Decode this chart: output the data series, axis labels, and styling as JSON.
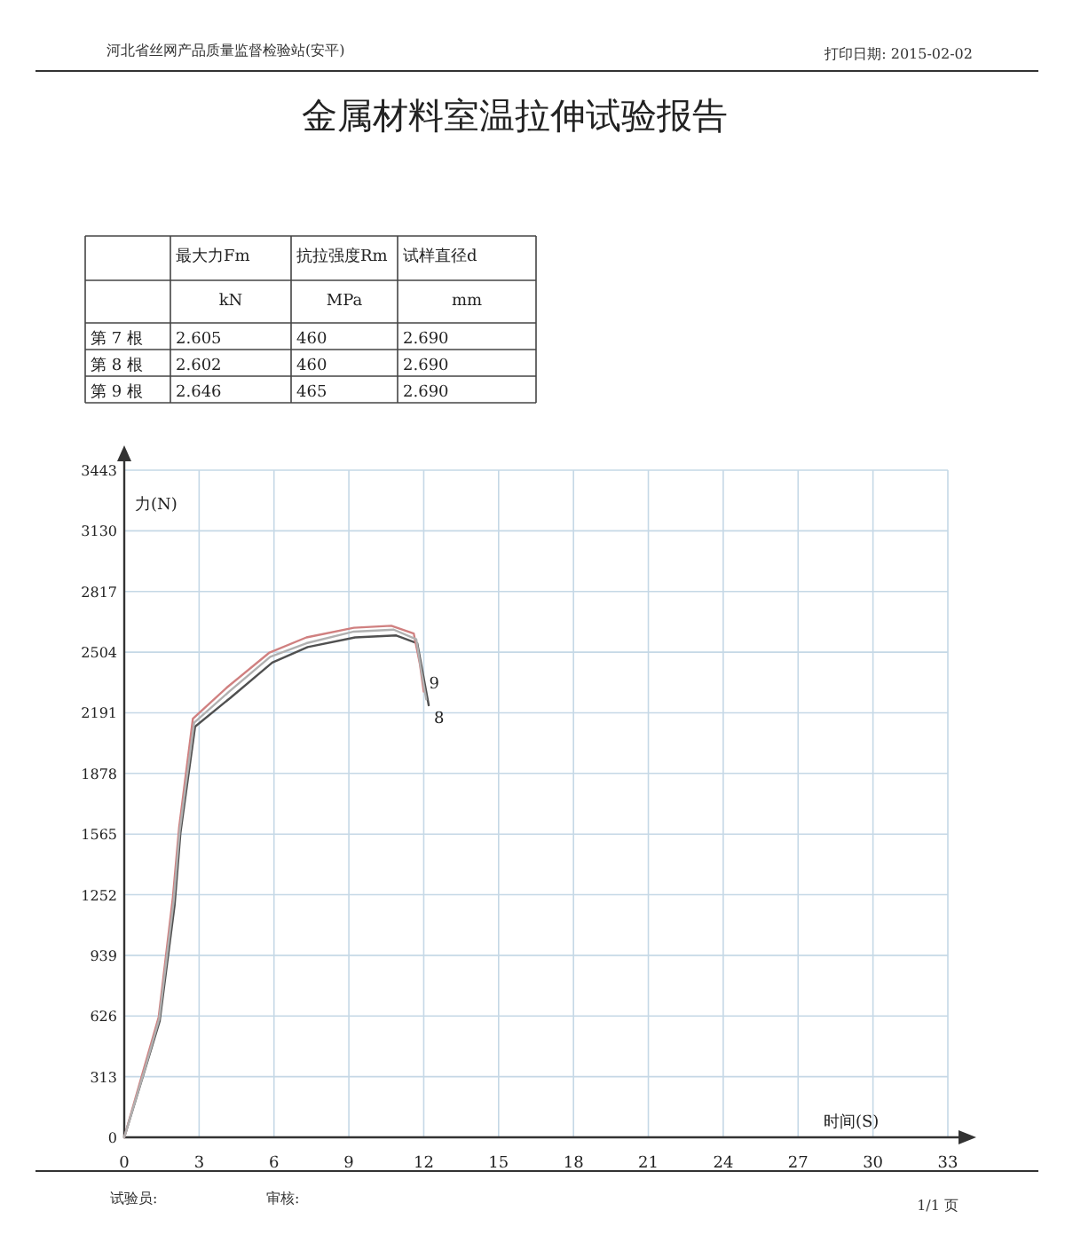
{
  "chart_data": [
    {
      "type": "other",
      "title": "金属材料室温拉伸试验报告",
      "annotations": [
        "河北省丝网产品质量监督检验站(安平)",
        "打印日期: 2015-02-02",
        "试验员:",
        "审核:",
        "1/1 页"
      ],
      "cell_labels": [
        [
          null,
          "最大力Fm",
          "抗拉强度Rm",
          "试样直径d"
        ],
        [
          null,
          "kN",
          "MPa",
          "mm"
        ],
        [
          "第 7 根",
          "2.605",
          "460",
          "2.690"
        ],
        [
          "第 8 根",
          "2.602",
          "460",
          "2.690"
        ],
        [
          "第 9 根",
          "2.646",
          "465",
          "2.690"
        ]
      ]
    },
    {
      "type": "line",
      "ylabel": "力(N)",
      "xlabel": "时间(S)",
      "xlim": [
        0,
        33
      ],
      "xticks": [
        0,
        3,
        6,
        9,
        12,
        15,
        18,
        21,
        24,
        27,
        30,
        33
      ],
      "ylim": [
        0,
        3443
      ],
      "yticks": [
        0,
        313,
        626,
        939,
        1252,
        1565,
        1878,
        2191,
        2504,
        2817,
        3130,
        3443
      ],
      "grid": true,
      "legend": false,
      "marker": "none",
      "line_style": "solid",
      "series": [
        {
          "name": "8",
          "color": "#505050",
          "x": [
            0,
            0.83,
            1.42,
            2.02,
            2.25,
            2.84,
            4.27,
            5.93,
            7.35,
            9.25,
            10.9,
            11.74,
            11.97,
            12.2
          ],
          "values": [
            0,
            350,
            600,
            1200,
            1570,
            2120,
            2270,
            2450,
            2530,
            2580,
            2590,
            2550,
            2390,
            2230
          ]
        },
        {
          "name": "9",
          "color": "#d08080",
          "x": [
            0,
            0.8,
            1.38,
            1.95,
            2.2,
            2.75,
            4.1,
            5.8,
            7.3,
            9.2,
            10.7,
            11.6,
            11.85,
            12.0
          ],
          "values": [
            0,
            360,
            620,
            1240,
            1600,
            2160,
            2320,
            2500,
            2580,
            2630,
            2640,
            2600,
            2440,
            2300
          ]
        },
        {
          "color": "#b0b0b0",
          "x": [
            0,
            0.82,
            1.4,
            1.98,
            2.22,
            2.8,
            4.2,
            5.85,
            7.3,
            9.2,
            10.8,
            11.7,
            11.9,
            12.1
          ],
          "values": [
            0,
            350,
            610,
            1220,
            1580,
            2140,
            2300,
            2480,
            2550,
            2610,
            2620,
            2570,
            2410,
            2260
          ]
        }
      ]
    }
  ]
}
